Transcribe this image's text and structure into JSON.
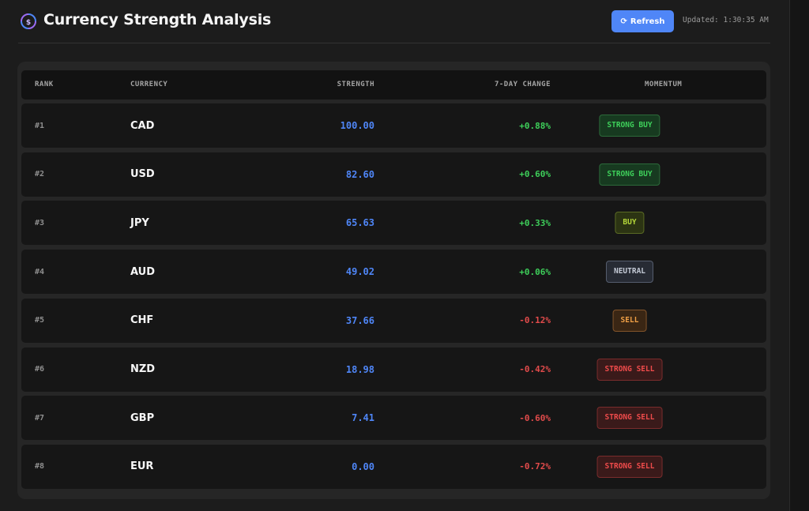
{
  "header": {
    "title": "Currency Strength Analysis",
    "refresh_label": "Refresh",
    "updated_label": "Updated:",
    "updated_time": "1:30:35 AM"
  },
  "table": {
    "columns": [
      "RANK",
      "CURRENCY",
      "STRENGTH",
      "7-DAY CHANGE",
      "MOMENTUM"
    ],
    "rows": [
      {
        "rank": "#1",
        "currency": "CAD",
        "strength": "100.00",
        "change": "+0.88%",
        "direction": "pos",
        "momentum": "STRONG BUY",
        "momentum_class": "strong-buy"
      },
      {
        "rank": "#2",
        "currency": "USD",
        "strength": "82.60",
        "change": "+0.60%",
        "direction": "pos",
        "momentum": "STRONG BUY",
        "momentum_class": "strong-buy"
      },
      {
        "rank": "#3",
        "currency": "JPY",
        "strength": "65.63",
        "change": "+0.33%",
        "direction": "pos",
        "momentum": "BUY",
        "momentum_class": "buy"
      },
      {
        "rank": "#4",
        "currency": "AUD",
        "strength": "49.02",
        "change": "+0.06%",
        "direction": "pos",
        "momentum": "NEUTRAL",
        "momentum_class": "neutral"
      },
      {
        "rank": "#5",
        "currency": "CHF",
        "strength": "37.66",
        "change": "-0.12%",
        "direction": "neg",
        "momentum": "SELL",
        "momentum_class": "sell"
      },
      {
        "rank": "#6",
        "currency": "NZD",
        "strength": "18.98",
        "change": "-0.42%",
        "direction": "neg",
        "momentum": "STRONG SELL",
        "momentum_class": "strong-sell"
      },
      {
        "rank": "#7",
        "currency": "GBP",
        "strength": "7.41",
        "change": "-0.60%",
        "direction": "neg",
        "momentum": "STRONG SELL",
        "momentum_class": "strong-sell"
      },
      {
        "rank": "#8",
        "currency": "EUR",
        "strength": "0.00",
        "change": "-0.72%",
        "direction": "neg",
        "momentum": "STRONG SELL",
        "momentum_class": "strong-sell"
      }
    ]
  },
  "colors": {
    "background": "#1c1c1c",
    "accent": "#4f86f7",
    "positive": "#3ecf5a",
    "negative": "#e24b4b"
  },
  "icons": {
    "logo": "currency-cycle-icon",
    "refresh": "refresh-icon"
  }
}
